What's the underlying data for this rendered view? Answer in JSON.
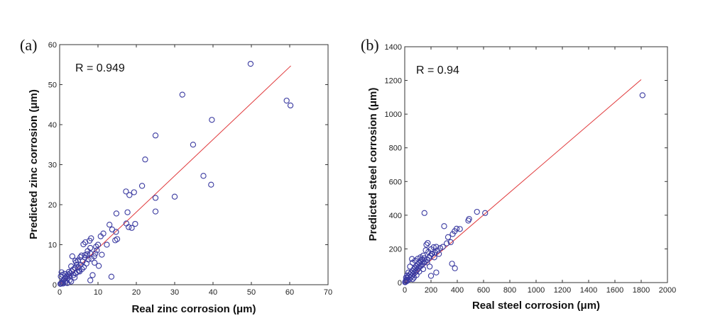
{
  "chart_data": [
    {
      "type": "scatter",
      "panel_label": "(a)",
      "annotation": "R = 0.949",
      "xlabel": "Real zinc corrosion (μm)",
      "ylabel": "Predicted zinc corrosion (μm)",
      "xlim": [
        0,
        70
      ],
      "ylim": [
        0,
        60
      ],
      "xticks": [
        0,
        10,
        20,
        30,
        40,
        50,
        60,
        70
      ],
      "yticks": [
        0,
        10,
        20,
        30,
        40,
        50,
        60
      ],
      "marker_color": "#3a3aa0",
      "fit_color": "#e0383a",
      "fit_line": [
        [
          0,
          0
        ],
        [
          60.3,
          54.7
        ]
      ],
      "series": [
        {
          "name": "data",
          "points": [
            [
              49.8,
              55.2
            ],
            [
              32.0,
              47.5
            ],
            [
              59.2,
              46.0
            ],
            [
              60.2,
              44.8
            ],
            [
              39.7,
              41.2
            ],
            [
              25.0,
              37.3
            ],
            [
              34.8,
              35.0
            ],
            [
              22.3,
              31.3
            ],
            [
              30.0,
              22.0
            ],
            [
              37.5,
              27.2
            ],
            [
              39.5,
              25.0
            ],
            [
              21.5,
              24.7
            ],
            [
              17.3,
              23.3
            ],
            [
              18.2,
              22.4
            ],
            [
              19.4,
              23.1
            ],
            [
              25.0,
              21.7
            ],
            [
              25.0,
              18.3
            ],
            [
              14.8,
              17.8
            ],
            [
              17.7,
              18.1
            ],
            [
              18.0,
              14.4
            ],
            [
              18.8,
              14.2
            ],
            [
              19.7,
              15.2
            ],
            [
              17.4,
              15.3
            ],
            [
              13.0,
              15.0
            ],
            [
              13.7,
              13.8
            ],
            [
              14.7,
              13.2
            ],
            [
              15.0,
              11.4
            ],
            [
              14.5,
              11.1
            ],
            [
              11.4,
              12.8
            ],
            [
              10.7,
              12.1
            ],
            [
              12.3,
              10.0
            ],
            [
              10.0,
              10.0
            ],
            [
              9.5,
              9.5
            ],
            [
              8.2,
              11.6
            ],
            [
              8.0,
              9.2
            ],
            [
              7.8,
              11.0
            ],
            [
              6.7,
              10.6
            ],
            [
              6.2,
              10.1
            ],
            [
              9.7,
              8.6
            ],
            [
              9.3,
              7.8
            ],
            [
              9.0,
              7.1
            ],
            [
              8.0,
              7.8
            ],
            [
              7.2,
              7.6
            ],
            [
              6.6,
              7.4
            ],
            [
              3.3,
              7.1
            ],
            [
              6.0,
              5.8
            ],
            [
              5.4,
              6.9
            ],
            [
              4.8,
              6.1
            ],
            [
              4.3,
              5.6
            ],
            [
              5.5,
              5.0
            ],
            [
              4.9,
              4.3
            ],
            [
              4.0,
              4.2
            ],
            [
              3.5,
              3.8
            ],
            [
              3.2,
              3.3
            ],
            [
              2.8,
              2.9
            ],
            [
              2.5,
              2.2
            ],
            [
              2.2,
              2.6
            ],
            [
              1.8,
              2.0
            ],
            [
              1.5,
              1.8
            ],
            [
              1.2,
              1.4
            ],
            [
              1.0,
              1.1
            ],
            [
              0.8,
              0.8
            ],
            [
              0.6,
              0.5
            ],
            [
              0.4,
              0.3
            ],
            [
              0.3,
              2.1
            ],
            [
              0.5,
              3.1
            ],
            [
              0.7,
              2.5
            ],
            [
              1.3,
              2.7
            ],
            [
              1.6,
              1.0
            ],
            [
              2.1,
              1.6
            ],
            [
              2.6,
              1.1
            ],
            [
              3.0,
              0.8
            ],
            [
              3.6,
              2.4
            ],
            [
              4.2,
              2.8
            ],
            [
              4.6,
              3.2
            ],
            [
              5.0,
              3.5
            ],
            [
              5.8,
              3.9
            ],
            [
              6.3,
              4.4
            ],
            [
              7.0,
              5.3
            ],
            [
              7.5,
              6.3
            ],
            [
              8.3,
              6.5
            ],
            [
              9.1,
              5.5
            ],
            [
              10.2,
              4.7
            ],
            [
              8.6,
              2.4
            ],
            [
              8.0,
              1.1
            ],
            [
              13.5,
              2.0
            ],
            [
              11.0,
              7.5
            ],
            [
              0.2,
              0.2
            ],
            [
              0.9,
              0.3
            ],
            [
              1.4,
              0.5
            ],
            [
              2.0,
              0.4
            ],
            [
              2.4,
              3.2
            ],
            [
              3.9,
              1.8
            ],
            [
              4.5,
              5.0
            ],
            [
              5.2,
              3.3
            ],
            [
              6.6,
              6.8
            ],
            [
              7.3,
              8.4
            ],
            [
              5.7,
              7.3
            ],
            [
              3.0,
              4.6
            ],
            [
              4.1,
              6.0
            ]
          ]
        }
      ]
    },
    {
      "type": "scatter",
      "panel_label": "(b)",
      "annotation": "R = 0.94",
      "xlabel": "Real steel corrosion (μm)",
      "ylabel": "Predicted steel corrosion (μm)",
      "xlim": [
        0,
        2000
      ],
      "ylim": [
        0,
        1400
      ],
      "xticks": [
        0,
        200,
        400,
        600,
        800,
        1000,
        1200,
        1400,
        1600,
        1800,
        2000
      ],
      "yticks": [
        0,
        200,
        400,
        600,
        800,
        1000,
        1200,
        1400
      ],
      "marker_color": "#3a3aa0",
      "fit_color": "#e0383a",
      "fit_line": [
        [
          0,
          0
        ],
        [
          1800,
          1205
        ]
      ],
      "series": [
        {
          "name": "data",
          "points": [
            [
              1810,
              1112
            ],
            [
              612,
              413
            ],
            [
              550,
              420
            ],
            [
              490,
              378
            ],
            [
              484,
              368
            ],
            [
              420,
              318
            ],
            [
              395,
              320
            ],
            [
              380,
              305
            ],
            [
              365,
              288
            ],
            [
              300,
              335
            ],
            [
              330,
              270
            ],
            [
              350,
              240
            ],
            [
              320,
              233
            ],
            [
              150,
              413
            ],
            [
              360,
              112
            ],
            [
              382,
              85
            ],
            [
              175,
              235
            ],
            [
              165,
              225
            ],
            [
              220,
              210
            ],
            [
              240,
              212
            ],
            [
              200,
              198
            ],
            [
              180,
              182
            ],
            [
              210,
              172
            ],
            [
              160,
              192
            ],
            [
              140,
              160
            ],
            [
              150,
              145
            ],
            [
              130,
              138
            ],
            [
              120,
              128
            ],
            [
              110,
              118
            ],
            [
              100,
              108
            ],
            [
              90,
              98
            ],
            [
              80,
              88
            ],
            [
              70,
              80
            ],
            [
              60,
              70
            ],
            [
              50,
              60
            ],
            [
              40,
              48
            ],
            [
              30,
              38
            ],
            [
              20,
              28
            ],
            [
              12,
              18
            ],
            [
              8,
              10
            ],
            [
              5,
              5
            ],
            [
              3,
              2
            ],
            [
              15,
              8
            ],
            [
              25,
              15
            ],
            [
              35,
              20
            ],
            [
              45,
              30
            ],
            [
              55,
              40
            ],
            [
              65,
              50
            ],
            [
              75,
              58
            ],
            [
              85,
              65
            ],
            [
              95,
              75
            ],
            [
              105,
              85
            ],
            [
              115,
              95
            ],
            [
              125,
              100
            ],
            [
              135,
              110
            ],
            [
              145,
              120
            ],
            [
              155,
              125
            ],
            [
              170,
              135
            ],
            [
              185,
              148
            ],
            [
              195,
              160
            ],
            [
              205,
              170
            ],
            [
              230,
              178
            ],
            [
              250,
              190
            ],
            [
              270,
              205
            ],
            [
              290,
              212
            ],
            [
              260,
              170
            ],
            [
              225,
              150
            ],
            [
              190,
              95
            ],
            [
              170,
              120
            ],
            [
              140,
              80
            ],
            [
              110,
              65
            ],
            [
              90,
              45
            ],
            [
              70,
              30
            ],
            [
              60,
              20
            ],
            [
              80,
              130
            ],
            [
              60,
              118
            ],
            [
              40,
              95
            ],
            [
              55,
              140
            ],
            [
              100,
              142
            ],
            [
              120,
              150
            ],
            [
              200,
              40
            ],
            [
              240,
              60
            ],
            [
              18,
              42
            ],
            [
              10,
              30
            ],
            [
              28,
              60
            ]
          ]
        }
      ]
    }
  ]
}
